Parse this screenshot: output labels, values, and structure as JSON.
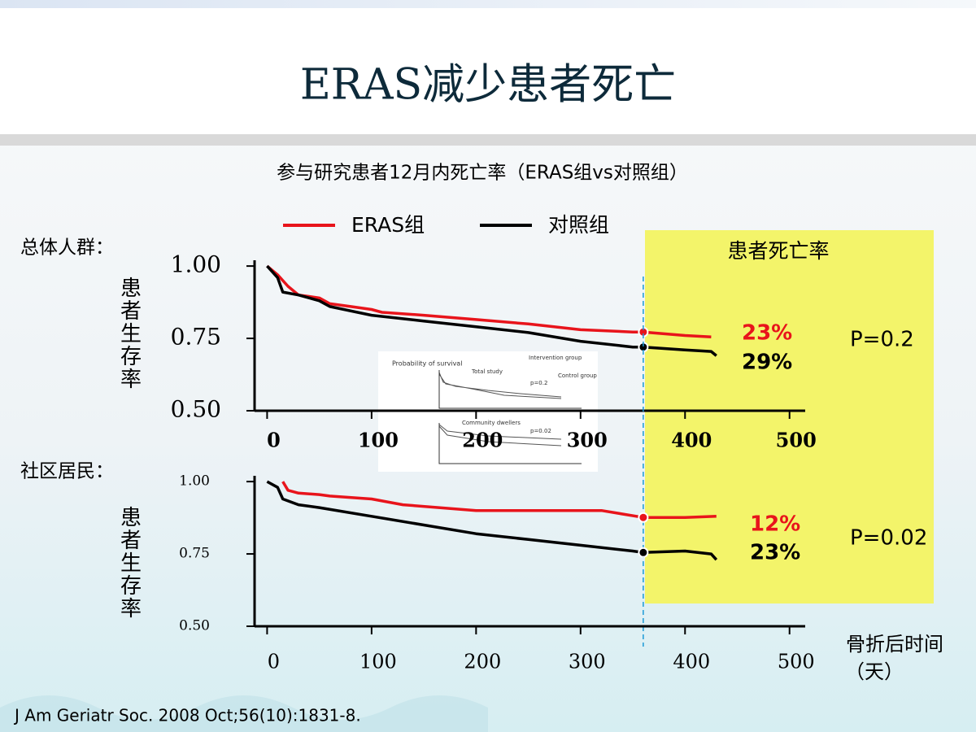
{
  "title": "ERAS减少患者死亡",
  "subtitle": "参与研究患者12月内死亡率（ERAS组vs对照组）",
  "highlight_label": "患者死亡率",
  "x_axis_label": "骨折后时间（天）",
  "citation": "J Am Geriatr Soc. 2008 Oct;56(10):1831-8.",
  "inset_texts": [
    "Probability of survival",
    "Total study",
    "Intervention group",
    "Control group",
    "p=0.2",
    "Community dwellers",
    "p=0.02"
  ],
  "chart_data": [
    {
      "type": "line",
      "group_label": "总体人群：",
      "ylabel": "患者生存率",
      "xlim": [
        -12,
        515
      ],
      "ylim": [
        0.5,
        1.02
      ],
      "xticks": [
        0,
        100,
        200,
        300,
        400,
        500
      ],
      "yticks": [
        {
          "value": 1.0,
          "label": "1.00"
        },
        {
          "value": 0.75,
          "label": "0.75"
        },
        {
          "value": 0.5,
          "label": "0.50"
        }
      ],
      "cutoff_x": 360,
      "series": [
        {
          "name": "ERAS组",
          "color": "#e8141b",
          "x": [
            0,
            10,
            20,
            30,
            50,
            60,
            80,
            100,
            110,
            150,
            200,
            250,
            300,
            350,
            360,
            400,
            425
          ],
          "values": [
            1.0,
            0.97,
            0.93,
            0.9,
            0.89,
            0.87,
            0.86,
            0.85,
            0.84,
            0.83,
            0.815,
            0.8,
            0.78,
            0.772,
            0.772,
            0.76,
            0.755
          ]
        },
        {
          "name": "对照组",
          "color": "#000000",
          "x": [
            0,
            10,
            15,
            30,
            50,
            60,
            100,
            150,
            200,
            250,
            300,
            350,
            360,
            400,
            425,
            430
          ],
          "values": [
            1.0,
            0.96,
            0.91,
            0.9,
            0.88,
            0.86,
            0.83,
            0.81,
            0.79,
            0.77,
            0.74,
            0.72,
            0.72,
            0.71,
            0.705,
            0.69
          ]
        }
      ],
      "mortality_rates": {
        "values": [
          23,
          29
        ],
        "value_labels": [
          "23%",
          "29%"
        ]
      },
      "p_value": "P=0.2"
    },
    {
      "type": "line",
      "group_label": "社区居民：",
      "ylabel": "患者生存率",
      "xlim": [
        -12,
        515
      ],
      "ylim": [
        0.5,
        1.02
      ],
      "xticks": [
        0,
        100,
        200,
        300,
        400,
        500
      ],
      "yticks": [
        {
          "value": 1.0,
          "label": "1.00"
        },
        {
          "value": 0.75,
          "label": "0.75"
        },
        {
          "value": 0.5,
          "label": "0.50"
        }
      ],
      "cutoff_x": 360,
      "series": [
        {
          "color": "#e8141b",
          "x": [
            15,
            20,
            30,
            50,
            60,
            100,
            130,
            200,
            250,
            320,
            360,
            400,
            430
          ],
          "values": [
            1.0,
            0.97,
            0.96,
            0.955,
            0.95,
            0.94,
            0.92,
            0.9,
            0.9,
            0.9,
            0.876,
            0.876,
            0.88
          ]
        },
        {
          "color": "#000000",
          "x": [
            0,
            10,
            15,
            30,
            50,
            100,
            150,
            200,
            250,
            300,
            350,
            360,
            400,
            425,
            430
          ],
          "values": [
            1.0,
            0.98,
            0.94,
            0.92,
            0.91,
            0.88,
            0.85,
            0.82,
            0.8,
            0.78,
            0.76,
            0.755,
            0.76,
            0.75,
            0.73
          ]
        }
      ],
      "mortality_rates": {
        "values": [
          12,
          23
        ],
        "value_labels": [
          "12%",
          "23%"
        ]
      },
      "p_value": "P=0.02"
    }
  ]
}
